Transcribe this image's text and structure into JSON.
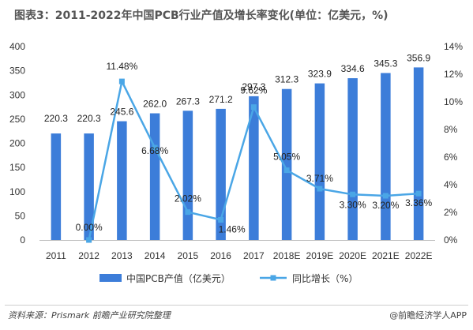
{
  "title": "图表3：2011-2022年中国PCB行业产值及增长率变化(单位：亿美元，%)",
  "source": "资料来源：Prismark 前瞻产业研究院整理",
  "brand": "@前瞻经济学人APP",
  "colors": {
    "bar": "#3c7dd9",
    "line": "#4aa6e6",
    "marker": "#4aa6e6"
  },
  "chart_data": {
    "type": "bar",
    "categories": [
      "2011",
      "2012",
      "2013",
      "2014",
      "2015",
      "2016",
      "2017",
      "2018E",
      "2019E",
      "2020E",
      "2021E",
      "2022E"
    ],
    "series": [
      {
        "name": "中国PCB产值（亿美元）",
        "type": "bar",
        "axis": "left",
        "values": [
          220.3,
          220.3,
          245.6,
          262.0,
          267.3,
          271.2,
          297.3,
          312.3,
          323.9,
          334.6,
          345.3,
          356.9
        ],
        "labels": [
          "220.3",
          "220.3",
          "245.6",
          "262.0",
          "267.3",
          "271.2",
          "297.3",
          "312.3",
          "323.9",
          "334.6",
          "345.3",
          "356.9"
        ]
      },
      {
        "name": "同比增长（%）",
        "type": "line",
        "axis": "right",
        "values": [
          null,
          0.0,
          11.48,
          6.68,
          2.02,
          1.46,
          9.62,
          5.05,
          3.71,
          3.3,
          3.2,
          3.36
        ],
        "labels": [
          "",
          "0.00%",
          "11.48%",
          "6.68%",
          "2.02%",
          "1.46%",
          "9.62%",
          "5.05%",
          "3.71%",
          "3.30%",
          "3.20%",
          "3.36%"
        ]
      }
    ],
    "y_left": {
      "min": 0,
      "max": 400,
      "ticks": [
        "0",
        "50",
        "100",
        "150",
        "200",
        "250",
        "300",
        "350",
        "400"
      ]
    },
    "y_right": {
      "min": 0,
      "max": 14,
      "ticks": [
        "0%",
        "2%",
        "4%",
        "6%",
        "8%",
        "10%",
        "12%",
        "14%"
      ]
    },
    "grid": false,
    "legend_position": "bottom"
  }
}
